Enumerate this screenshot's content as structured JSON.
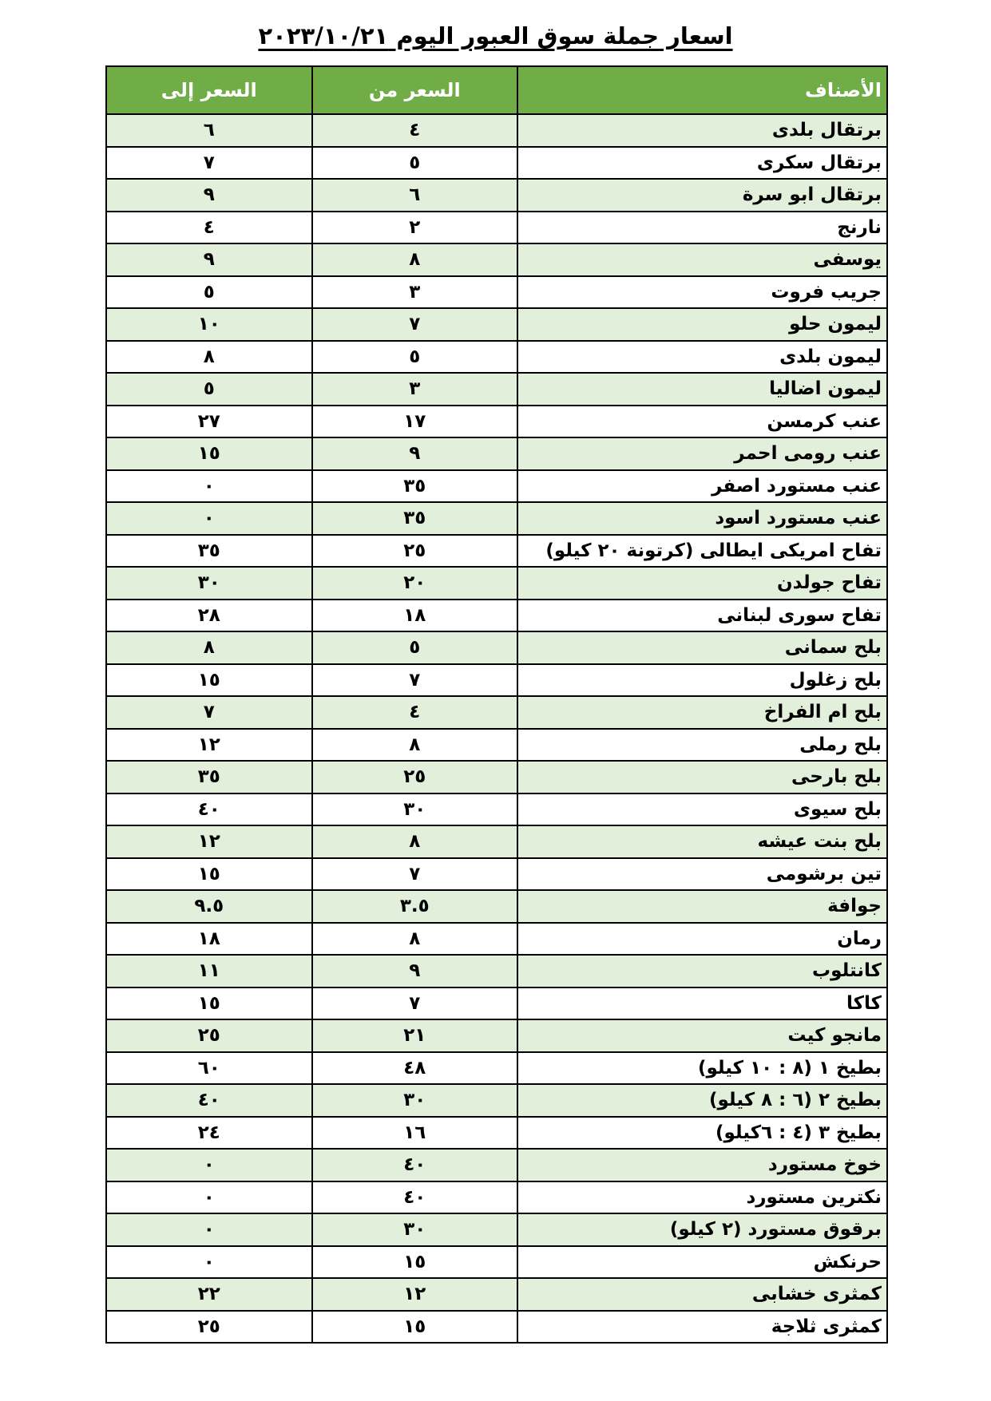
{
  "title": "اسعار جملة سوق العبور اليوم ٢٠٢٣/١٠/٢١",
  "colors": {
    "header_bg": "#70ad47",
    "header_text": "#ffffff",
    "alt_row_bg": "#e2efda"
  },
  "table": {
    "headers": [
      "الأصناف",
      "السعر من",
      "السعر إلى"
    ],
    "rows": [
      [
        "برتقال بلدى",
        "٤",
        "٦"
      ],
      [
        "برتقال سكرى",
        "٥",
        "٧"
      ],
      [
        "برتقال ابو سرة",
        "٦",
        "٩"
      ],
      [
        "نارنج",
        "٢",
        "٤"
      ],
      [
        "يوسفى",
        "٨",
        "٩"
      ],
      [
        "جريب فروت",
        "٣",
        "٥"
      ],
      [
        "ليمون حلو",
        "٧",
        "١٠"
      ],
      [
        "ليمون بلدى",
        "٥",
        "٨"
      ],
      [
        "ليمون اضاليا",
        "٣",
        "٥"
      ],
      [
        "عنب كرمسن",
        "١٧",
        "٢٧"
      ],
      [
        "عنب رومى احمر",
        "٩",
        "١٥"
      ],
      [
        "عنب مستورد اصفر",
        "٣٥",
        "٠"
      ],
      [
        "عنب مستورد اسود",
        "٣٥",
        "٠"
      ],
      [
        "تفاح امريكى ايطالى (كرتونة ٢٠ كيلو)",
        "٢٥",
        "٣٥"
      ],
      [
        "تفاح جولدن",
        "٢٠",
        "٣٠"
      ],
      [
        "تفاح سورى لبنانى",
        "١٨",
        "٢٨"
      ],
      [
        "بلح سمانى",
        "٥",
        "٨"
      ],
      [
        "بلح زغلول",
        "٧",
        "١٥"
      ],
      [
        "بلح ام الفراخ",
        "٤",
        "٧"
      ],
      [
        "بلح رملى",
        "٨",
        "١٢"
      ],
      [
        "بلح بارحى",
        "٢٥",
        "٣٥"
      ],
      [
        "بلح سيوى",
        "٣٠",
        "٤٠"
      ],
      [
        "بلح بنت عيشه",
        "٨",
        "١٢"
      ],
      [
        "تين برشومى",
        "٧",
        "١٥"
      ],
      [
        "جوافة",
        "٣.٥",
        "٩.٥"
      ],
      [
        "رمان",
        "٨",
        "١٨"
      ],
      [
        "كانتلوب",
        "٩",
        "١١"
      ],
      [
        "كاكا",
        "٧",
        "١٥"
      ],
      [
        "مانجو كيت",
        "٢١",
        "٢٥"
      ],
      [
        "بطيخ ١ (٨ : ١٠ كيلو)",
        "٤٨",
        "٦٠"
      ],
      [
        "بطيخ ٢ (٦ : ٨ كيلو)",
        "٣٠",
        "٤٠"
      ],
      [
        "بطيخ ٣ (٤ : ٦كيلو)",
        "١٦",
        "٢٤"
      ],
      [
        "خوخ مستورد",
        "٤٠",
        "٠"
      ],
      [
        "نكترين مستورد",
        "٤٠",
        "٠"
      ],
      [
        "برقوق مستورد (٢ كيلو)",
        "٣٠",
        "٠"
      ],
      [
        "حرنكش",
        "١٥",
        "٠"
      ],
      [
        "كمثرى خشابى",
        "١٢",
        "٢٢"
      ],
      [
        "كمثرى ثلاجة",
        "١٥",
        "٢٥"
      ]
    ]
  }
}
